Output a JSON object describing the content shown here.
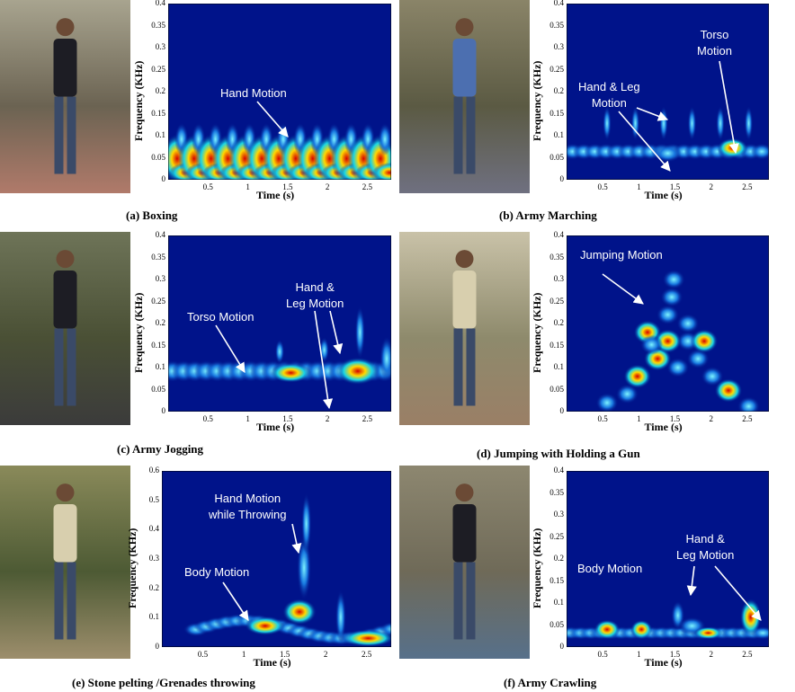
{
  "panels": [
    {
      "caption": "(a)  Boxing",
      "xlabel": "Time (s)",
      "ylabel": "Frequency (KHz)",
      "yticks": [
        "0.4",
        "0.35",
        "0.3",
        "0.25",
        "0.2",
        "0.15",
        "0.1",
        "0.05",
        "0"
      ],
      "xticks": [
        "0.5",
        "1",
        "1.5",
        "2",
        "2.5"
      ],
      "annotations": [
        "Hand Motion"
      ]
    },
    {
      "caption": "(b)  Army Marching",
      "xlabel": "Time (s)",
      "ylabel": "Frequency (KHz)",
      "yticks": [
        "0.4",
        "0.35",
        "0.3",
        "0.25",
        "0.2",
        "0.15",
        "0.1",
        "0.05",
        "0"
      ],
      "xticks": [
        "0.5",
        "1",
        "1.5",
        "2",
        "2.5"
      ],
      "annotations": [
        "Hand  & Leg\nMotion",
        "Torso\nMotion"
      ]
    },
    {
      "caption": "(c)  Army Jogging",
      "xlabel": "Time (s)",
      "ylabel": "Frequency (KHz)",
      "yticks": [
        "0.4",
        "0.35",
        "0.3",
        "0.25",
        "0.2",
        "0.15",
        "0.1",
        "0.05",
        "0"
      ],
      "xticks": [
        "0.5",
        "1",
        "1.5",
        "2",
        "2.5"
      ],
      "annotations": [
        "Torso Motion",
        "Hand  &\nLeg Motion"
      ]
    },
    {
      "caption": "(d)  Jumping with Holding a Gun",
      "xlabel": "Time (s)",
      "ylabel": "Frequency (KHz)",
      "yticks": [
        "0.4",
        "0.35",
        "0.3",
        "0.25",
        "0.2",
        "0.15",
        "0.1",
        "0.05",
        "0"
      ],
      "xticks": [
        "0.5",
        "1",
        "1.5",
        "2",
        "2.5"
      ],
      "annotations": [
        "Jumping Motion"
      ]
    },
    {
      "caption": "(e)  Stone pelting /Grenades throwing",
      "xlabel": "Time (s)",
      "ylabel": "Frequency (KHz)",
      "yticks": [
        "0.6",
        "0.5",
        "0.4",
        "0.3",
        "0.2",
        "0.1",
        "0"
      ],
      "xticks": [
        "0.5",
        "1",
        "1.5",
        "2",
        "2.5"
      ],
      "annotations": [
        "Hand Motion\nwhile Throwing",
        "Body Motion"
      ]
    },
    {
      "caption": "(f)    Army Crawling",
      "xlabel": "Time (s)",
      "ylabel": "Frequency (KHz)",
      "yticks": [
        "0.4",
        "0.35",
        "0.3",
        "0.25",
        "0.2",
        "0.15",
        "0.1",
        "0.05",
        "0"
      ],
      "xticks": [
        "0.5",
        "1",
        "1.5",
        "2",
        "2.5"
      ],
      "annotations": [
        "Body Motion",
        "Hand  &\nLeg Motion"
      ]
    }
  ],
  "colors": {
    "spectrogram_background": "#00138a",
    "annotation_text": "#ffffff"
  }
}
